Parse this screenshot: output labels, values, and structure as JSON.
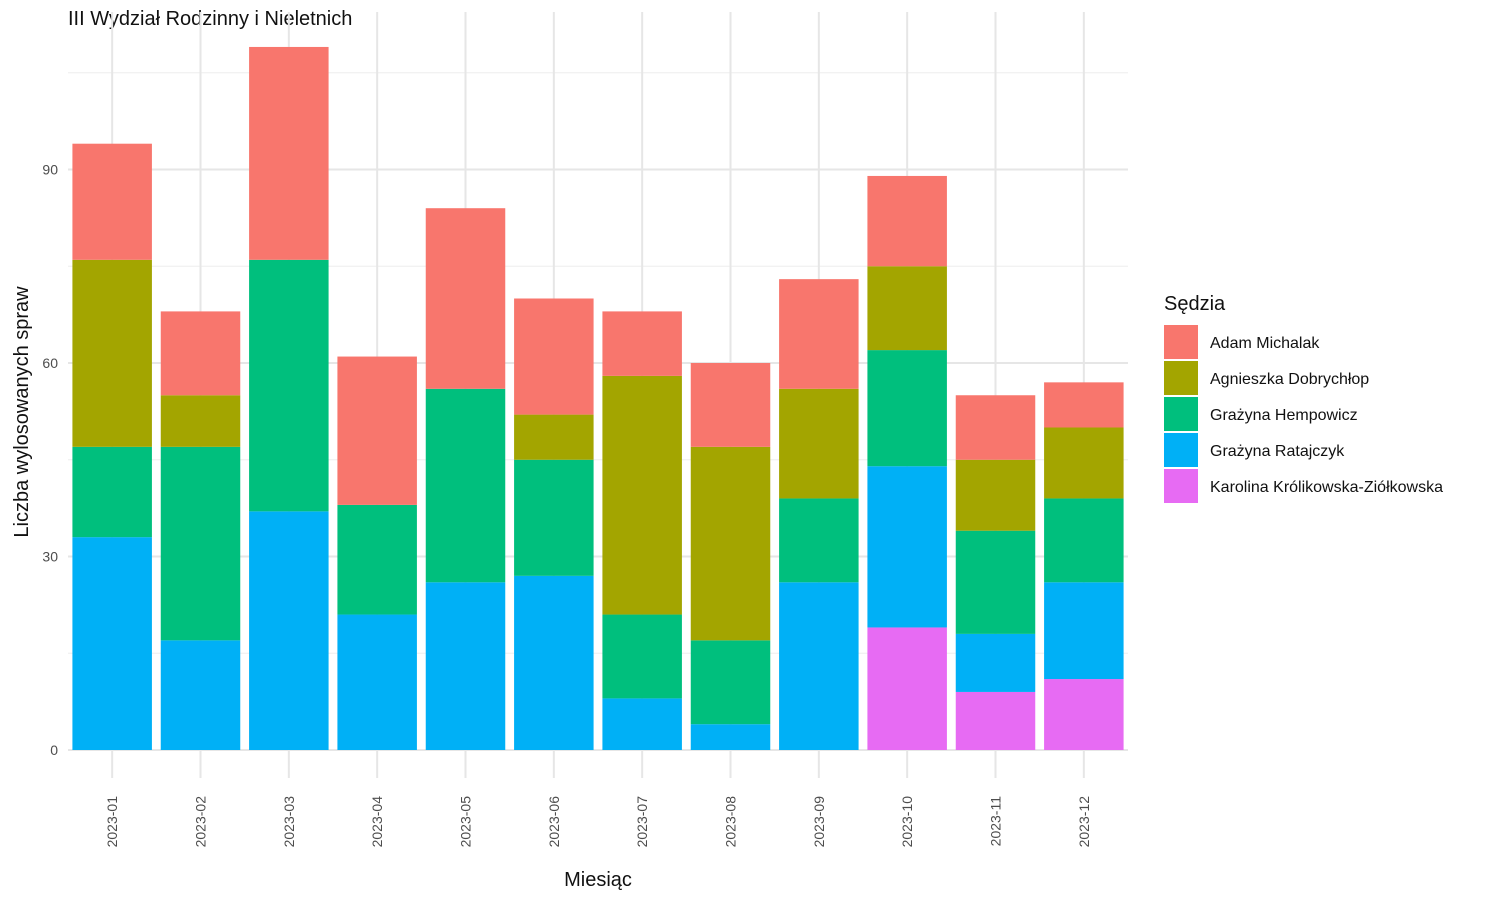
{
  "chart_data": {
    "type": "bar",
    "stacked": true,
    "title": "III Wydział Rodzinny i Nieletnich",
    "xlabel": "Miesiąc",
    "ylabel": "Liczba wylosowanych spraw",
    "ylim": [
      0,
      110
    ],
    "yticks": [
      0,
      30,
      60,
      90
    ],
    "grid": true,
    "legend_position": "right",
    "legend_title": "Sędzia",
    "categories": [
      "2023-01",
      "2023-02",
      "2023-03",
      "2023-04",
      "2023-05",
      "2023-06",
      "2023-07",
      "2023-08",
      "2023-09",
      "2023-10",
      "2023-11",
      "2023-12"
    ],
    "series": [
      {
        "name": "Adam Michalak",
        "color": "#F8766D",
        "values": [
          18,
          13,
          33,
          23,
          28,
          18,
          10,
          13,
          17,
          14,
          10,
          7
        ]
      },
      {
        "name": "Agnieszka Dobrychłop",
        "color": "#A3A500",
        "values": [
          29,
          8,
          0,
          0,
          0,
          7,
          37,
          30,
          17,
          13,
          11,
          11
        ]
      },
      {
        "name": "Grażyna Hempowicz",
        "color": "#00BF7D",
        "values": [
          14,
          30,
          39,
          17,
          30,
          18,
          13,
          13,
          13,
          18,
          16,
          13
        ]
      },
      {
        "name": "Grażyna Ratajczyk",
        "color": "#00B0F6",
        "values": [
          33,
          17,
          37,
          21,
          26,
          27,
          8,
          4,
          26,
          25,
          9,
          15
        ]
      },
      {
        "name": "Karolina Królikowska-Ziółkowska",
        "color": "#E76BF3",
        "values": [
          0,
          0,
          0,
          0,
          0,
          0,
          0,
          0,
          0,
          19,
          9,
          11
        ]
      }
    ]
  }
}
